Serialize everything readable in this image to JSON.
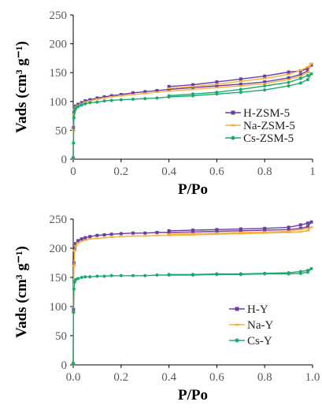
{
  "chart_data": [
    {
      "type": "line",
      "xlabel": "P/Po",
      "ylabel": "Vads (cm³ g⁻¹)",
      "xlim": [
        0,
        1
      ],
      "ylim": [
        0,
        250
      ],
      "xticks": [
        "0",
        "0.2",
        "0.4",
        "0.6",
        "0.8",
        "1"
      ],
      "yticks": [
        "0",
        "50",
        "100",
        "150",
        "200",
        "250"
      ],
      "grid": false,
      "legend_position": "bottom-right",
      "series": [
        {
          "name": "H-ZSM-5",
          "color": "#6a3fa0",
          "marker": "square",
          "x": [
            0.0,
            0.001,
            0.003,
            0.006,
            0.01,
            0.02,
            0.035,
            0.05,
            0.07,
            0.1,
            0.13,
            0.16,
            0.2,
            0.25,
            0.3,
            0.35,
            0.4,
            0.5,
            0.6,
            0.7,
            0.8,
            0.9,
            0.95,
            0.98,
            0.995,
            0.98,
            0.95,
            0.9,
            0.8,
            0.7,
            0.6,
            0.5,
            0.4
          ],
          "y": [
            2,
            55,
            80,
            88,
            92,
            95,
            98,
            101,
            103,
            106,
            108,
            110,
            112,
            115,
            117,
            119,
            121,
            124,
            127,
            130,
            134,
            141,
            147,
            153,
            163,
            157,
            153,
            151,
            144,
            139,
            134,
            129,
            126
          ]
        },
        {
          "name": "Na-ZSM-5",
          "color": "#f5b041",
          "marker": "dash",
          "x": [
            0.0,
            0.001,
            0.003,
            0.006,
            0.01,
            0.02,
            0.035,
            0.05,
            0.07,
            0.1,
            0.13,
            0.16,
            0.2,
            0.25,
            0.3,
            0.35,
            0.4,
            0.5,
            0.6,
            0.7,
            0.8,
            0.9,
            0.95,
            0.98,
            0.995,
            0.98,
            0.95,
            0.9,
            0.8,
            0.7,
            0.6,
            0.5,
            0.4
          ],
          "y": [
            2,
            50,
            78,
            86,
            90,
            93,
            96,
            99,
            101,
            104,
            106,
            108,
            110,
            112,
            114,
            116,
            118,
            121,
            124,
            127,
            131,
            138,
            144,
            150,
            166,
            160,
            154,
            147,
            140,
            135,
            130,
            126,
            123
          ]
        },
        {
          "name": "Cs-ZSM-5",
          "color": "#1aaa6e",
          "marker": "circle",
          "x": [
            0.0,
            0.001,
            0.003,
            0.006,
            0.01,
            0.02,
            0.035,
            0.05,
            0.07,
            0.1,
            0.13,
            0.16,
            0.2,
            0.25,
            0.3,
            0.35,
            0.4,
            0.5,
            0.6,
            0.7,
            0.8,
            0.9,
            0.95,
            0.98,
            0.995,
            0.98,
            0.95,
            0.9,
            0.8,
            0.7,
            0.6,
            0.5,
            0.4
          ],
          "y": [
            2,
            28,
            72,
            84,
            88,
            91,
            94,
            96,
            98,
            99,
            101,
            102,
            103,
            104,
            105,
            106,
            108,
            110,
            113,
            116,
            120,
            127,
            132,
            138,
            148,
            145,
            140,
            133,
            127,
            121,
            116,
            113,
            110
          ]
        }
      ]
    },
    {
      "type": "line",
      "xlabel": "P/Po",
      "ylabel": "Vads (cm³ g⁻¹)",
      "xlim": [
        0,
        1
      ],
      "ylim": [
        0,
        250
      ],
      "xticks": [
        "0.0",
        "0.2",
        "0.4",
        "0.6",
        "0.8",
        "1.0"
      ],
      "yticks": [
        "0",
        "50",
        "100",
        "150",
        "200",
        "250"
      ],
      "grid": false,
      "legend_position": "bottom-right",
      "series": [
        {
          "name": "H-Y",
          "color": "#6a3fa0",
          "marker": "square",
          "x": [
            0.0,
            0.001,
            0.003,
            0.006,
            0.01,
            0.02,
            0.035,
            0.05,
            0.07,
            0.1,
            0.13,
            0.16,
            0.2,
            0.25,
            0.3,
            0.35,
            0.4,
            0.5,
            0.6,
            0.7,
            0.8,
            0.9,
            0.95,
            0.98,
            0.995,
            0.98,
            0.95,
            0.9,
            0.8,
            0.7,
            0.6,
            0.5,
            0.4
          ],
          "y": [
            2,
            95,
            175,
            200,
            208,
            213,
            216,
            218,
            220,
            222,
            223,
            224,
            225,
            226,
            226,
            227,
            227,
            228,
            229,
            230,
            231,
            232,
            234,
            237,
            245,
            243,
            240,
            236,
            234,
            233,
            232,
            231,
            230
          ]
        },
        {
          "name": "Na-Y",
          "color": "#f5b041",
          "marker": "dash",
          "x": [
            0.0,
            0.001,
            0.003,
            0.006,
            0.01,
            0.02,
            0.035,
            0.05,
            0.07,
            0.1,
            0.13,
            0.16,
            0.2,
            0.25,
            0.3,
            0.35,
            0.4,
            0.5,
            0.6,
            0.7,
            0.8,
            0.9,
            0.95,
            0.98,
            0.995,
            0.98,
            0.95,
            0.9,
            0.8,
            0.7,
            0.6,
            0.5,
            0.4
          ],
          "y": [
            2,
            90,
            170,
            196,
            204,
            209,
            212,
            214,
            216,
            217,
            218,
            219,
            220,
            221,
            221,
            222,
            222,
            223,
            224,
            225,
            226,
            227,
            228,
            230,
            236,
            234,
            232,
            229,
            228,
            227,
            226,
            225,
            224
          ]
        },
        {
          "name": "Cs-Y",
          "color": "#1aaa6e",
          "marker": "circle",
          "x": [
            0.0,
            0.001,
            0.003,
            0.006,
            0.01,
            0.02,
            0.035,
            0.05,
            0.07,
            0.1,
            0.13,
            0.16,
            0.2,
            0.25,
            0.3,
            0.35,
            0.4,
            0.5,
            0.6,
            0.7,
            0.8,
            0.9,
            0.95,
            0.98,
            0.995,
            0.98,
            0.95,
            0.9,
            0.8,
            0.7,
            0.6,
            0.5,
            0.4
          ],
          "y": [
            2,
            90,
            130,
            142,
            146,
            148,
            150,
            151,
            151,
            152,
            152,
            153,
            153,
            153,
            153,
            154,
            154,
            154,
            155,
            155,
            156,
            156,
            157,
            159,
            165,
            162,
            160,
            158,
            157,
            156,
            156,
            155,
            155
          ]
        }
      ]
    }
  ]
}
